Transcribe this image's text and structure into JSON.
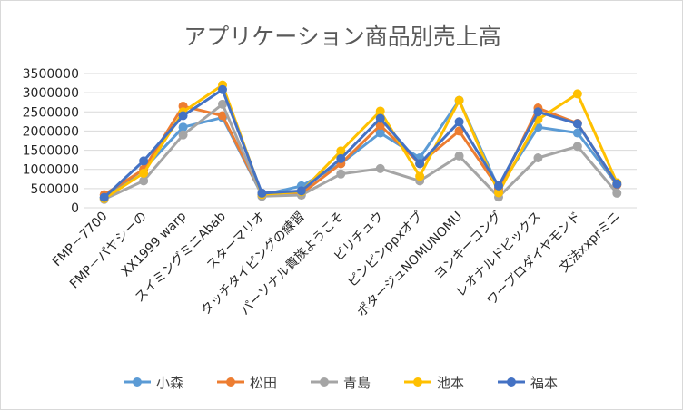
{
  "chart_data": {
    "type": "line",
    "title": "アプリケーション商品別売上高",
    "xlabel": "",
    "ylabel": "",
    "ylim": [
      0,
      3500000
    ],
    "yticks": [
      "0",
      "500000",
      "1000000",
      "1500000",
      "2000000",
      "2500000",
      "3000000",
      "3500000"
    ],
    "grid": true,
    "legend_position": "bottom",
    "categories": [
      "FMP－7700",
      "FMP－パヤシーの",
      "XX1999 warp",
      "スイミングミニAbab",
      "スターマリオ",
      "タッチタイピングの練習",
      "パーソナル貴族ようこそ",
      "ピリチュウ",
      "ピンピンppxオプ",
      "ポタージュNOMUNOMU",
      "ヨンキーコング",
      "レオナルドピックス",
      "ワープロダイヤモンド",
      "文法xxprミニ"
    ],
    "series": [
      {
        "name": "小森",
        "color": "#5B9BD5",
        "values": [
          270000,
          1000000,
          2100000,
          2350000,
          330000,
          570000,
          1150000,
          1950000,
          1300000,
          2800000,
          500000,
          2100000,
          1950000,
          600000
        ]
      },
      {
        "name": "松田",
        "color": "#ED7D31",
        "values": [
          340000,
          1000000,
          2650000,
          2400000,
          350000,
          370000,
          1150000,
          2150000,
          1150000,
          2000000,
          500000,
          2600000,
          2200000,
          600000
        ]
      },
      {
        "name": "青島",
        "color": "#A5A5A5",
        "values": [
          220000,
          700000,
          1900000,
          2700000,
          300000,
          330000,
          880000,
          1020000,
          700000,
          1350000,
          280000,
          1300000,
          1600000,
          380000
        ]
      },
      {
        "name": "池本",
        "color": "#FFC000",
        "values": [
          240000,
          900000,
          2500000,
          3200000,
          350000,
          420000,
          1480000,
          2520000,
          820000,
          2800000,
          390000,
          2300000,
          2970000,
          650000
        ]
      },
      {
        "name": "福本",
        "color": "#4472C4",
        "values": [
          270000,
          1220000,
          2400000,
          3080000,
          380000,
          440000,
          1280000,
          2330000,
          1150000,
          2240000,
          570000,
          2500000,
          2190000,
          620000
        ]
      }
    ]
  }
}
